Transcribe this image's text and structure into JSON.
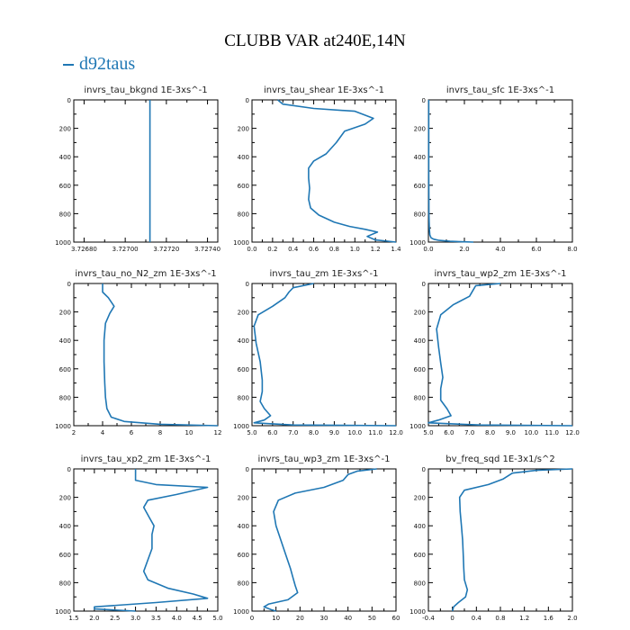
{
  "title": "CLUBB VAR at240E,14N",
  "legend": "d92taus",
  "colors": {
    "line": "#1f77b4",
    "axis": "#000000"
  },
  "chart_data": [
    {
      "type": "line",
      "title": "invrs_tau_bkgnd",
      "units": "1E-3xs^-1",
      "xlim": [
        3.72675,
        3.72745
      ],
      "ylim": [
        0,
        1000
      ],
      "y_inverted": true,
      "xticks": [
        "3.72680",
        "3.72700",
        "3.72720",
        "3.72740"
      ],
      "xtick_values": [
        3.7268,
        3.727,
        3.7272,
        3.7274
      ],
      "yticks": [
        "0",
        "200",
        "400",
        "600",
        "800",
        "1000"
      ],
      "series": [
        {
          "x": [
            3.72712,
            3.72712
          ],
          "y": [
            0,
            1000
          ]
        }
      ]
    },
    {
      "type": "line",
      "title": "invrs_tau_shear",
      "units": "1E-3xs^-1",
      "xlim": [
        0,
        1.4
      ],
      "ylim": [
        0,
        1000
      ],
      "y_inverted": true,
      "xticks": [
        "0.0",
        "0.2",
        "0.4",
        "0.6",
        "0.8",
        "1.0",
        "1.2",
        "1.4"
      ],
      "xtick_values": [
        0,
        0.2,
        0.4,
        0.6,
        0.8,
        1.0,
        1.2,
        1.4
      ],
      "yticks": [
        "0",
        "200",
        "400",
        "600",
        "800",
        "1000"
      ],
      "series": [
        {
          "x": [
            0.25,
            0.3,
            0.6,
            1.0,
            1.18,
            1.1,
            0.9,
            0.82,
            0.72,
            0.6,
            0.55,
            0.55,
            0.56,
            0.55,
            0.57,
            0.65,
            0.8,
            0.95,
            1.1,
            1.22,
            1.12,
            1.2,
            1.4
          ],
          "y": [
            0,
            30,
            60,
            80,
            130,
            170,
            220,
            300,
            380,
            430,
            480,
            550,
            620,
            700,
            760,
            810,
            860,
            890,
            910,
            930,
            960,
            985,
            1000
          ]
        }
      ]
    },
    {
      "type": "line",
      "title": "invrs_tau_sfc",
      "units": "1E-3xs^-1",
      "xlim": [
        0,
        8
      ],
      "ylim": [
        0,
        1000
      ],
      "y_inverted": true,
      "xticks": [
        "0.0",
        "2.0",
        "4.0",
        "6.0",
        "8.0"
      ],
      "xtick_values": [
        0,
        2,
        4,
        6,
        8
      ],
      "yticks": [
        "0",
        "200",
        "400",
        "600",
        "800",
        "1000"
      ],
      "series": [
        {
          "x": [
            0.02,
            0.02,
            0.03,
            0.05,
            0.08,
            0.15,
            0.3,
            0.6,
            1.2,
            2.0,
            2.5
          ],
          "y": [
            0,
            500,
            800,
            900,
            950,
            970,
            980,
            988,
            994,
            998,
            1000
          ]
        }
      ]
    },
    {
      "type": "line",
      "title": "invrs_tau_no_N2_zm",
      "units": "1E-3xs^-1",
      "xlim": [
        2,
        12
      ],
      "ylim": [
        0,
        1000
      ],
      "y_inverted": true,
      "xticks": [
        "2",
        "4",
        "6",
        "8",
        "10",
        "12"
      ],
      "xtick_values": [
        2,
        4,
        6,
        8,
        10,
        12
      ],
      "yticks": [
        "0",
        "200",
        "400",
        "600",
        "800",
        "1000"
      ],
      "series": [
        {
          "x": [
            4.0,
            4.0,
            4.4,
            4.8,
            4.5,
            4.2,
            4.1,
            4.1,
            4.15,
            4.2,
            4.3,
            4.6,
            5.5,
            8.0,
            12.0
          ],
          "y": [
            0,
            60,
            100,
            160,
            210,
            280,
            400,
            550,
            700,
            800,
            880,
            940,
            970,
            990,
            1000
          ]
        }
      ]
    },
    {
      "type": "line",
      "title": "invrs_tau_zm",
      "units": "1E-3xs^-1",
      "xlim": [
        5.0,
        12.0
      ],
      "ylim": [
        0,
        1000
      ],
      "y_inverted": true,
      "xticks": [
        "5.0",
        "6.0",
        "7.0",
        "8.0",
        "9.0",
        "10.0",
        "11.0",
        "12.0"
      ],
      "xtick_values": [
        5,
        6,
        7,
        8,
        9,
        10,
        11,
        12
      ],
      "yticks": [
        "0",
        "200",
        "400",
        "600",
        "800",
        "1000"
      ],
      "series": [
        {
          "x": [
            8.0,
            7.0,
            6.8,
            6.6,
            6.0,
            5.3,
            5.1,
            5.2,
            5.4,
            5.5,
            5.5,
            5.4,
            5.6,
            5.9,
            5.6,
            5.1,
            7.0,
            12.0
          ],
          "y": [
            0,
            30,
            60,
            100,
            160,
            220,
            300,
            420,
            550,
            680,
            760,
            830,
            880,
            930,
            960,
            980,
            995,
            1000
          ]
        }
      ]
    },
    {
      "type": "line",
      "title": "invrs_tau_wp2_zm",
      "units": "1E-3xs^-1",
      "xlim": [
        5.0,
        12.0
      ],
      "ylim": [
        0,
        1000
      ],
      "y_inverted": true,
      "xticks": [
        "5.0",
        "6.0",
        "7.0",
        "8.0",
        "9.0",
        "10.0",
        "11.0",
        "12.0"
      ],
      "xtick_values": [
        5,
        6,
        7,
        8,
        9,
        10,
        11,
        12
      ],
      "yticks": [
        "0",
        "200",
        "400",
        "600",
        "800",
        "1000"
      ],
      "series": [
        {
          "x": [
            8.5,
            7.3,
            7.2,
            7.0,
            6.2,
            5.6,
            5.4,
            5.5,
            5.6,
            5.7,
            5.6,
            5.6,
            5.9,
            6.1,
            5.5,
            5.0,
            7.5,
            12.0
          ],
          "y": [
            0,
            15,
            40,
            90,
            150,
            220,
            320,
            450,
            560,
            660,
            740,
            820,
            880,
            930,
            960,
            980,
            995,
            1000
          ]
        }
      ]
    },
    {
      "type": "line",
      "title": "invrs_tau_xp2_zm",
      "units": "1E-3xs^-1",
      "xlim": [
        1.5,
        5.0
      ],
      "ylim": [
        0,
        1000
      ],
      "y_inverted": true,
      "xticks": [
        "1.5",
        "2.0",
        "2.5",
        "3.0",
        "3.5",
        "4.0",
        "4.5",
        "5.0"
      ],
      "xtick_values": [
        1.5,
        2,
        2.5,
        3,
        3.5,
        4,
        4.5,
        5
      ],
      "yticks": [
        "0",
        "200",
        "400",
        "600",
        "800",
        "1000"
      ],
      "series": [
        {
          "x": [
            3.0,
            3.0,
            3.5,
            4.75,
            4.0,
            3.3,
            3.2,
            3.35,
            3.45,
            3.4,
            3.4,
            3.3,
            3.2,
            3.3,
            3.8,
            4.4,
            4.75,
            3.5,
            2.0,
            2.0,
            3.0
          ],
          "y": [
            0,
            80,
            110,
            130,
            180,
            220,
            270,
            350,
            400,
            460,
            560,
            640,
            720,
            780,
            840,
            880,
            910,
            940,
            970,
            985,
            1000
          ]
        }
      ]
    },
    {
      "type": "line",
      "title": "invrs_tau_wp3_zm",
      "units": "1E-3xs^-1",
      "xlim": [
        0,
        60
      ],
      "ylim": [
        0,
        1000
      ],
      "y_inverted": true,
      "xticks": [
        "0",
        "10",
        "20",
        "30",
        "40",
        "50",
        "60"
      ],
      "xtick_values": [
        0,
        10,
        20,
        30,
        40,
        50,
        60
      ],
      "yticks": [
        "0",
        "200",
        "400",
        "600",
        "800",
        "1000"
      ],
      "series": [
        {
          "x": [
            52,
            44,
            40,
            38,
            30,
            18,
            11,
            9,
            10,
            12,
            14,
            16,
            17,
            18,
            19,
            15,
            7,
            5,
            8,
            10
          ],
          "y": [
            0,
            15,
            40,
            80,
            130,
            170,
            220,
            300,
            400,
            500,
            600,
            700,
            760,
            820,
            870,
            920,
            950,
            970,
            990,
            1000
          ]
        }
      ]
    },
    {
      "type": "line",
      "title": "bv_freq_sqd",
      "units": "1E-3x1/s^2",
      "xlim": [
        -0.4,
        2.0
      ],
      "ylim": [
        0,
        1000
      ],
      "y_inverted": true,
      "xticks": [
        "-0.4",
        "0",
        "0.4",
        "0.8",
        "1.2",
        "1.6",
        "2.0"
      ],
      "xtick_values": [
        -0.4,
        0,
        0.4,
        0.8,
        1.2,
        1.6,
        2.0
      ],
      "yticks": [
        "0",
        "200",
        "400",
        "600",
        "800",
        "1000"
      ],
      "series": [
        {
          "x": [
            2.0,
            1.4,
            1.0,
            0.85,
            0.6,
            0.2,
            0.12,
            0.13,
            0.15,
            0.17,
            0.18,
            0.19,
            0.2,
            0.25,
            0.22,
            0.1,
            0.02,
            0.0
          ],
          "y": [
            0,
            10,
            30,
            70,
            110,
            150,
            200,
            300,
            400,
            500,
            600,
            700,
            780,
            850,
            900,
            940,
            970,
            1000
          ]
        }
      ]
    }
  ]
}
